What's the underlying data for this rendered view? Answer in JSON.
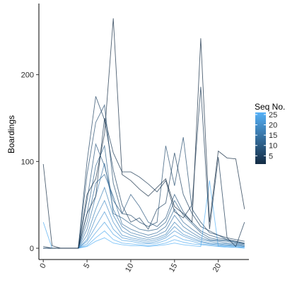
{
  "chart_data": {
    "type": "line",
    "title": "",
    "xlabel": "",
    "ylabel": "Boardings",
    "x": [
      0,
      1,
      2,
      3,
      4,
      5,
      6,
      7,
      8,
      9,
      10,
      11,
      12,
      13,
      14,
      15,
      16,
      17,
      18,
      19,
      20,
      21,
      22,
      23
    ],
    "xlim": [
      -0.5,
      23.5
    ],
    "ylim": [
      -13,
      282
    ],
    "x_ticks": [
      0,
      5,
      10,
      15,
      20
    ],
    "x_tick_labels": [
      "0",
      "5",
      "10",
      "15",
      "20"
    ],
    "y_ticks": [
      0,
      100,
      200
    ],
    "y_tick_labels": [
      "0",
      "100",
      "200"
    ],
    "grid": false,
    "legend": {
      "title": "Seq No.",
      "position": "right",
      "type": "colorbar",
      "range": [
        1,
        26
      ],
      "breaks": [
        5,
        10,
        15,
        20,
        25
      ],
      "labels": [
        "5",
        "10",
        "15",
        "20",
        "25"
      ],
      "low_color": "#132B43",
      "high_color": "#56B1F7"
    },
    "series_note_colors": {
      "low": "#132B43",
      "high": "#56B1F7"
    },
    "series": [
      {
        "seq": 1,
        "values": [
          97,
          3,
          0,
          0,
          0,
          62,
          80,
          132,
          265,
          85,
          78,
          68,
          60,
          70,
          80,
          48,
          40,
          30,
          242,
          30,
          112,
          104,
          103,
          45
        ]
      },
      {
        "seq": 3,
        "values": [
          2,
          0,
          0,
          0,
          0,
          40,
          60,
          150,
          110,
          88,
          88,
          82,
          74,
          65,
          78,
          42,
          35,
          50,
          186,
          22,
          105,
          12,
          2,
          30
        ]
      },
      {
        "seq": 5,
        "values": [
          0,
          0,
          0,
          0,
          0,
          100,
          175,
          148,
          90,
          50,
          30,
          35,
          22,
          45,
          52,
          110,
          62,
          40,
          25,
          20,
          15,
          12,
          10,
          8
        ]
      },
      {
        "seq": 7,
        "values": [
          0,
          0,
          0,
          0,
          0,
          85,
          145,
          165,
          75,
          40,
          38,
          30,
          25,
          30,
          118,
          72,
          128,
          45,
          30,
          18,
          15,
          10,
          8,
          5
        ]
      },
      {
        "seq": 9,
        "values": [
          0,
          0,
          0,
          0,
          0,
          55,
          120,
          95,
          55,
          40,
          62,
          48,
          30,
          25,
          35,
          62,
          42,
          30,
          20,
          15,
          12,
          10,
          8,
          6
        ]
      },
      {
        "seq": 11,
        "values": [
          0,
          0,
          0,
          0,
          0,
          40,
          95,
          118,
          40,
          35,
          28,
          22,
          20,
          22,
          30,
          55,
          38,
          28,
          18,
          12,
          10,
          9,
          7,
          5
        ]
      },
      {
        "seq": 13,
        "values": [
          0,
          0,
          0,
          0,
          0,
          30,
          75,
          85,
          60,
          28,
          22,
          18,
          15,
          18,
          25,
          45,
          30,
          22,
          15,
          10,
          9,
          8,
          6,
          4
        ]
      },
      {
        "seq": 15,
        "values": [
          0,
          0,
          0,
          0,
          0,
          22,
          60,
          98,
          45,
          25,
          18,
          15,
          12,
          15,
          20,
          38,
          25,
          18,
          12,
          9,
          8,
          6,
          5,
          3
        ]
      },
      {
        "seq": 17,
        "values": [
          0,
          0,
          0,
          0,
          0,
          15,
          45,
          70,
          38,
          20,
          15,
          12,
          10,
          12,
          16,
          30,
          20,
          15,
          10,
          8,
          6,
          5,
          4,
          3
        ]
      },
      {
        "seq": 19,
        "values": [
          0,
          0,
          0,
          0,
          0,
          10,
          35,
          55,
          30,
          15,
          12,
          10,
          8,
          10,
          14,
          25,
          16,
          12,
          8,
          6,
          5,
          4,
          3,
          2
        ]
      },
      {
        "seq": 21,
        "values": [
          0,
          0,
          0,
          0,
          0,
          8,
          25,
          42,
          22,
          12,
          10,
          8,
          6,
          8,
          12,
          20,
          14,
          10,
          7,
          5,
          4,
          3,
          3,
          2
        ]
      },
      {
        "seq": 23,
        "values": [
          0,
          0,
          0,
          0,
          0,
          5,
          18,
          30,
          16,
          9,
          8,
          6,
          5,
          6,
          9,
          15,
          10,
          8,
          5,
          4,
          3,
          3,
          2,
          1
        ]
      },
      {
        "seq": 25,
        "values": [
          30,
          0,
          0,
          0,
          0,
          3,
          12,
          20,
          10,
          6,
          5,
          4,
          3,
          4,
          6,
          10,
          7,
          5,
          4,
          3,
          2,
          2,
          1,
          1
        ]
      },
      {
        "seq": 26,
        "values": [
          0,
          0,
          0,
          0,
          0,
          2,
          8,
          12,
          6,
          4,
          3,
          3,
          2,
          3,
          4,
          6,
          4,
          3,
          2,
          78,
          2,
          1,
          1,
          0
        ]
      }
    ]
  }
}
